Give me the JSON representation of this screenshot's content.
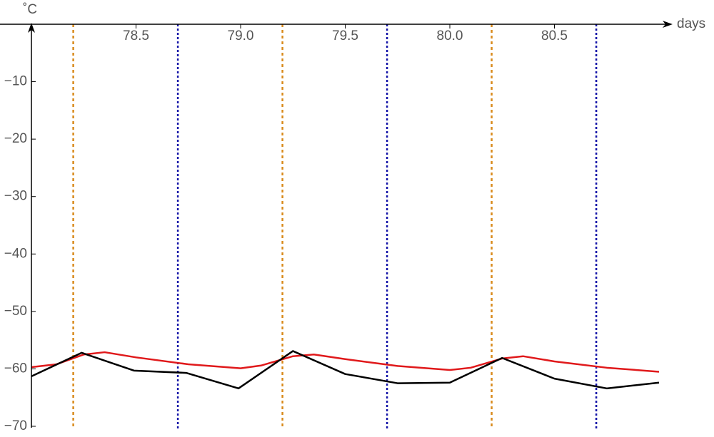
{
  "chart_data": {
    "type": "line",
    "y_label": "˚C",
    "x_label": "days",
    "xlim": [
      78.0,
      81.0
    ],
    "ylim": [
      -70,
      0
    ],
    "xticks": [
      78.5,
      {
        "value": 79,
        "label": "79.0"
      },
      79.5,
      {
        "value": 80,
        "label": "80.0"
      },
      80.5
    ],
    "yticks": [
      {
        "value": -10,
        "label": "−10"
      },
      {
        "value": -20,
        "label": "−20"
      },
      {
        "value": -30,
        "label": "−30"
      },
      {
        "value": -40,
        "label": "−40"
      },
      {
        "value": -50,
        "label": "−50"
      },
      {
        "value": -60,
        "label": "−60"
      },
      {
        "value": -70,
        "label": "−70"
      }
    ],
    "vertical_lines": [
      {
        "x": 78.2,
        "color": "#d98a1c",
        "dash": "4,4"
      },
      {
        "x": 78.7,
        "color": "#1414a8",
        "dash": "3,3"
      },
      {
        "x": 79.2,
        "color": "#d98a1c",
        "dash": "4,4"
      },
      {
        "x": 79.7,
        "color": "#1414a8",
        "dash": "3,3"
      },
      {
        "x": 80.2,
        "color": "#d98a1c",
        "dash": "4,4"
      },
      {
        "x": 80.7,
        "color": "#1414a8",
        "dash": "3,3"
      }
    ],
    "series": [
      {
        "color": "#e0191b",
        "x": [
          78.0,
          78.12,
          78.25,
          78.35,
          78.5,
          78.75,
          79.0,
          79.1,
          79.25,
          79.35,
          79.5,
          79.75,
          80.0,
          80.1,
          80.25,
          80.35,
          80.5,
          80.75,
          81.0
        ],
        "values": [
          -59.7,
          -59.2,
          -57.5,
          -57.1,
          -58.0,
          -59.2,
          -59.9,
          -59.4,
          -57.8,
          -57.5,
          -58.3,
          -59.5,
          -60.2,
          -59.8,
          -58.2,
          -57.8,
          -58.7,
          -59.8,
          -60.5
        ]
      },
      {
        "color": "#000000",
        "x": [
          78.0,
          78.24,
          78.49,
          78.74,
          78.99,
          79.25,
          79.5,
          79.75,
          80.0,
          80.25,
          80.5,
          80.75,
          81.0
        ],
        "values": [
          -61.3,
          -57.2,
          -60.3,
          -60.7,
          -63.4,
          -56.9,
          -60.9,
          -62.5,
          -62.4,
          -58.1,
          -61.7,
          -63.4,
          -62.4
        ]
      }
    ]
  }
}
